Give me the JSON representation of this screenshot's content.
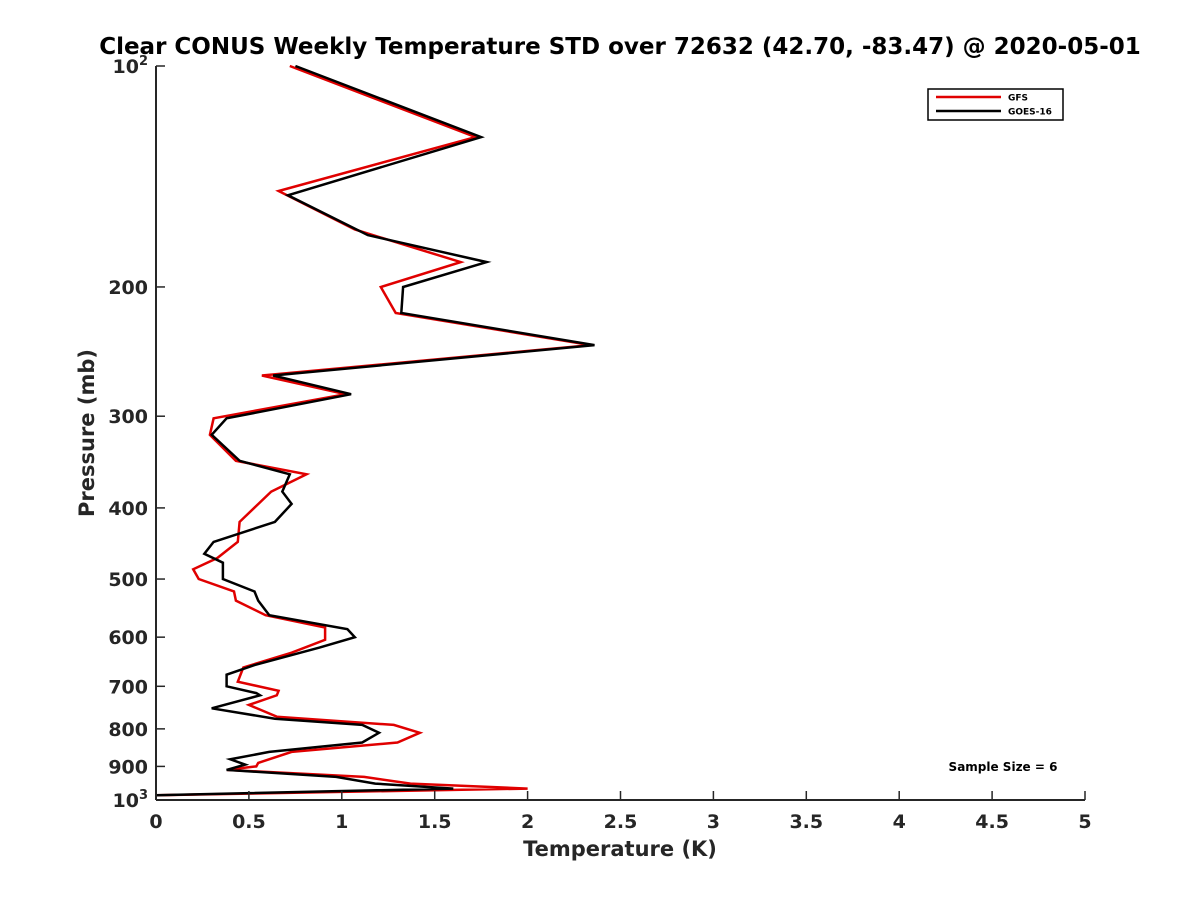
{
  "chart_data": {
    "type": "line",
    "title": "Clear CONUS Weekly Temperature STD over 72632 (42.70, -83.47) @ 2020-05-01",
    "xlabel": "Temperature (K)",
    "ylabel": "Pressure (mb)",
    "xlim": [
      0,
      5
    ],
    "ylim": [
      100,
      1000
    ],
    "y_scale": "log",
    "y_reversed": true,
    "x_ticks": [
      "0",
      "0.5",
      "1",
      "1.5",
      "2",
      "2.5",
      "3",
      "3.5",
      "4",
      "4.5",
      "5"
    ],
    "y_ticks": [
      {
        "value": 100,
        "base": "10",
        "exp": "2"
      },
      {
        "value": 200,
        "label": "200"
      },
      {
        "value": 300,
        "label": "300"
      },
      {
        "value": 400,
        "label": "400"
      },
      {
        "value": 500,
        "label": "500"
      },
      {
        "value": 600,
        "label": "600"
      },
      {
        "value": 700,
        "label": "700"
      },
      {
        "value": 800,
        "label": "800"
      },
      {
        "value": 900,
        "label": "900"
      },
      {
        "value": 1000,
        "base": "10",
        "exp": "3"
      }
    ],
    "grid": false,
    "legend_position": "top-right",
    "series": [
      {
        "name": "GFS",
        "color": "#e00000",
        "points": [
          [
            0.72,
            100
          ],
          [
            1.72,
            125
          ],
          [
            0.66,
            148
          ],
          [
            1.07,
            167
          ],
          [
            1.64,
            185
          ],
          [
            1.21,
            200
          ],
          [
            1.29,
            217
          ],
          [
            2.34,
            240
          ],
          [
            0.57,
            264
          ],
          [
            1.02,
            280
          ],
          [
            0.31,
            302
          ],
          [
            0.29,
            318
          ],
          [
            0.43,
            345
          ],
          [
            0.81,
            360
          ],
          [
            0.62,
            380
          ],
          [
            0.45,
            418
          ],
          [
            0.44,
            445
          ],
          [
            0.33,
            468
          ],
          [
            0.2,
            485
          ],
          [
            0.23,
            500
          ],
          [
            0.42,
            520
          ],
          [
            0.43,
            535
          ],
          [
            0.59,
            560
          ],
          [
            0.91,
            582
          ],
          [
            0.91,
            605
          ],
          [
            0.73,
            630
          ],
          [
            0.47,
            660
          ],
          [
            0.44,
            690
          ],
          [
            0.66,
            710
          ],
          [
            0.65,
            720
          ],
          [
            0.5,
            742
          ],
          [
            0.65,
            770
          ],
          [
            1.28,
            790
          ],
          [
            1.42,
            810
          ],
          [
            1.3,
            835
          ],
          [
            0.73,
            860
          ],
          [
            0.55,
            890
          ],
          [
            0.54,
            900
          ],
          [
            0.38,
            910
          ],
          [
            1.12,
            930
          ],
          [
            1.37,
            950
          ],
          [
            2.0,
            965
          ],
          [
            0.0,
            985
          ]
        ]
      },
      {
        "name": "GOES-16",
        "color": "#000000",
        "points": [
          [
            0.75,
            100
          ],
          [
            1.75,
            125
          ],
          [
            0.71,
            150
          ],
          [
            1.14,
            170
          ],
          [
            1.78,
            185
          ],
          [
            1.33,
            200
          ],
          [
            1.32,
            217
          ],
          [
            2.36,
            240
          ],
          [
            0.63,
            264
          ],
          [
            1.05,
            280
          ],
          [
            0.38,
            302
          ],
          [
            0.3,
            318
          ],
          [
            0.45,
            345
          ],
          [
            0.72,
            360
          ],
          [
            0.68,
            380
          ],
          [
            0.73,
            395
          ],
          [
            0.64,
            418
          ],
          [
            0.31,
            445
          ],
          [
            0.26,
            462
          ],
          [
            0.36,
            475
          ],
          [
            0.36,
            500
          ],
          [
            0.53,
            520
          ],
          [
            0.55,
            535
          ],
          [
            0.61,
            560
          ],
          [
            1.03,
            585
          ],
          [
            1.07,
            600
          ],
          [
            0.88,
            620
          ],
          [
            0.53,
            655
          ],
          [
            0.38,
            675
          ],
          [
            0.38,
            700
          ],
          [
            0.54,
            715
          ],
          [
            0.56,
            720
          ],
          [
            0.3,
            750
          ],
          [
            0.64,
            775
          ],
          [
            1.11,
            790
          ],
          [
            1.2,
            810
          ],
          [
            1.11,
            835
          ],
          [
            0.61,
            860
          ],
          [
            0.4,
            880
          ],
          [
            0.48,
            895
          ],
          [
            0.38,
            910
          ],
          [
            0.97,
            930
          ],
          [
            1.18,
            950
          ],
          [
            1.6,
            965
          ],
          [
            0.0,
            985
          ]
        ]
      }
    ],
    "annotation": "Sample Size = 6"
  }
}
